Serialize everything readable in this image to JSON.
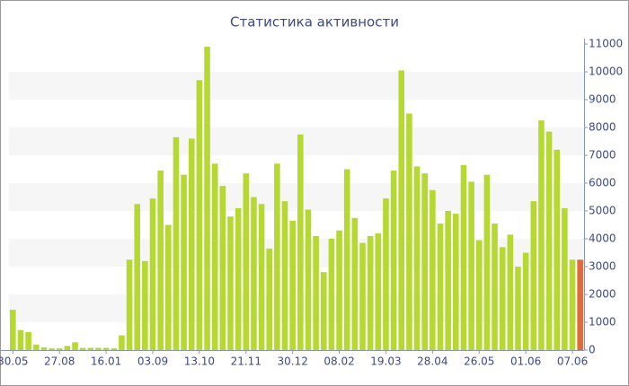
{
  "chart_data": {
    "type": "bar",
    "title": "Статистика активности",
    "categories": [
      "30.05",
      null,
      null,
      null,
      null,
      null,
      "27.08",
      null,
      null,
      null,
      null,
      null,
      "16.01",
      null,
      null,
      null,
      null,
      null,
      "03.09",
      null,
      null,
      null,
      null,
      null,
      "13.10",
      null,
      null,
      null,
      null,
      null,
      "21.11",
      null,
      null,
      null,
      null,
      null,
      "30.12",
      null,
      null,
      null,
      null,
      null,
      "08.02",
      null,
      null,
      null,
      null,
      null,
      "19.03",
      null,
      null,
      null,
      null,
      null,
      "28.04",
      null,
      null,
      null,
      null,
      null,
      "26.05",
      null,
      null,
      null,
      null,
      null,
      "01.06",
      null,
      null,
      null,
      null,
      null,
      "07.06",
      null
    ],
    "values": [
      1450,
      720,
      650,
      200,
      100,
      60,
      60,
      150,
      280,
      80,
      80,
      80,
      80,
      60,
      530,
      3250,
      5250,
      3200,
      5450,
      6450,
      4500,
      7650,
      6300,
      7600,
      9700,
      10900,
      6700,
      5900,
      4800,
      5100,
      6350,
      5500,
      5250,
      3650,
      6700,
      5350,
      4650,
      7750,
      5050,
      4100,
      2800,
      4000,
      4300,
      6500,
      4750,
      3850,
      4100,
      4200,
      5450,
      6450,
      10050,
      8500,
      6600,
      6350,
      5750,
      4550,
      5000,
      4900,
      6650,
      6050,
      3950,
      6300,
      4550,
      3700,
      4150,
      3000,
      3500,
      5350,
      8250,
      7850,
      7200,
      5100,
      3250,
      3250
    ],
    "color": "#b5d930",
    "last_color": "#e06a3c",
    "ylim": [
      0,
      11000
    ],
    "yticks": [
      0,
      1000,
      2000,
      3000,
      4000,
      5000,
      6000,
      7000,
      8000,
      9000,
      10000,
      11000
    ],
    "grid": "striped",
    "y_axis_side": "right"
  }
}
